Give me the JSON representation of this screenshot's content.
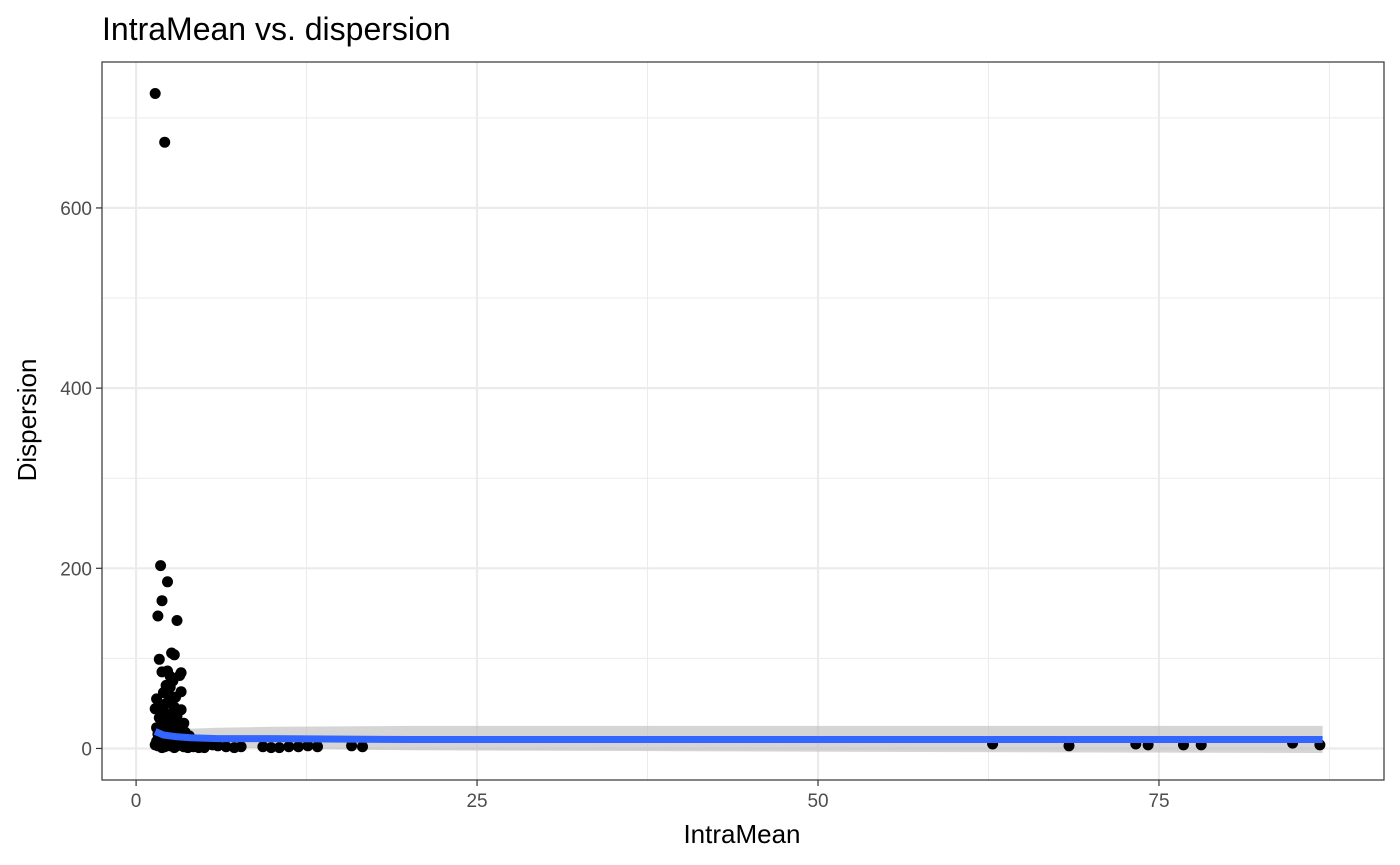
{
  "chart_data": {
    "type": "scatter",
    "title": "IntraMean vs. dispersion",
    "xlabel": "IntraMean",
    "ylabel": "Dispersion",
    "xlim": [
      -2.5,
      91.5
    ],
    "ylim": [
      -35,
      762
    ],
    "x_ticks": [
      0,
      25,
      50,
      75
    ],
    "x_tick_labels": [
      "0",
      "25",
      "50",
      "75"
    ],
    "x_minor_ticks": [
      12.5,
      37.5,
      62.5,
      87.5
    ],
    "y_ticks": [
      0,
      200,
      400,
      600
    ],
    "y_tick_labels": [
      "0",
      "200",
      "400",
      "600"
    ],
    "y_minor_ticks": [
      100,
      300,
      500,
      700
    ],
    "grid": true,
    "colors": {
      "points": "#000000",
      "smooth_line": "#3366ff",
      "confidence_band": "#bebebe",
      "panel_border": "#333333",
      "grid": "#ebebeb",
      "tick_label": "#4d4d4d"
    },
    "points": [
      {
        "x": 1.4,
        "y": 727
      },
      {
        "x": 2.1,
        "y": 673
      },
      {
        "x": 1.8,
        "y": 203
      },
      {
        "x": 2.3,
        "y": 185
      },
      {
        "x": 1.9,
        "y": 164
      },
      {
        "x": 1.6,
        "y": 147
      },
      {
        "x": 3.0,
        "y": 142
      },
      {
        "x": 2.6,
        "y": 106
      },
      {
        "x": 2.8,
        "y": 104
      },
      {
        "x": 1.7,
        "y": 99
      },
      {
        "x": 1.9,
        "y": 85
      },
      {
        "x": 2.3,
        "y": 86
      },
      {
        "x": 3.3,
        "y": 84
      },
      {
        "x": 2.5,
        "y": 80
      },
      {
        "x": 3.2,
        "y": 81
      },
      {
        "x": 2.7,
        "y": 75
      },
      {
        "x": 2.2,
        "y": 70
      },
      {
        "x": 2.5,
        "y": 68
      },
      {
        "x": 3.3,
        "y": 63
      },
      {
        "x": 2.0,
        "y": 62
      },
      {
        "x": 2.4,
        "y": 60
      },
      {
        "x": 2.9,
        "y": 57
      },
      {
        "x": 1.5,
        "y": 55
      },
      {
        "x": 2.6,
        "y": 52
      },
      {
        "x": 2.2,
        "y": 50
      },
      {
        "x": 1.8,
        "y": 48
      },
      {
        "x": 2.8,
        "y": 46
      },
      {
        "x": 1.4,
        "y": 44
      },
      {
        "x": 3.3,
        "y": 43
      },
      {
        "x": 2.1,
        "y": 40
      },
      {
        "x": 2.5,
        "y": 38
      },
      {
        "x": 3.0,
        "y": 36
      },
      {
        "x": 1.7,
        "y": 34
      },
      {
        "x": 2.3,
        "y": 32
      },
      {
        "x": 2.8,
        "y": 30
      },
      {
        "x": 3.5,
        "y": 28
      },
      {
        "x": 1.9,
        "y": 27
      },
      {
        "x": 2.6,
        "y": 25
      },
      {
        "x": 1.5,
        "y": 23
      },
      {
        "x": 3.2,
        "y": 22
      },
      {
        "x": 2.2,
        "y": 20
      },
      {
        "x": 3.6,
        "y": 18
      },
      {
        "x": 2.9,
        "y": 17
      },
      {
        "x": 1.6,
        "y": 16
      },
      {
        "x": 2.4,
        "y": 15
      },
      {
        "x": 3.9,
        "y": 14
      },
      {
        "x": 2.0,
        "y": 13
      },
      {
        "x": 3.4,
        "y": 12
      },
      {
        "x": 2.7,
        "y": 11
      },
      {
        "x": 1.8,
        "y": 10
      },
      {
        "x": 4.1,
        "y": 10
      },
      {
        "x": 3.1,
        "y": 9
      },
      {
        "x": 2.3,
        "y": 8
      },
      {
        "x": 1.5,
        "y": 8
      },
      {
        "x": 4.4,
        "y": 8
      },
      {
        "x": 3.7,
        "y": 7
      },
      {
        "x": 2.6,
        "y": 7
      },
      {
        "x": 2.0,
        "y": 6
      },
      {
        "x": 4.8,
        "y": 6
      },
      {
        "x": 3.3,
        "y": 6
      },
      {
        "x": 1.7,
        "y": 5
      },
      {
        "x": 2.9,
        "y": 5
      },
      {
        "x": 5.2,
        "y": 5
      },
      {
        "x": 3.9,
        "y": 4
      },
      {
        "x": 2.2,
        "y": 4
      },
      {
        "x": 1.4,
        "y": 4
      },
      {
        "x": 5.6,
        "y": 4
      },
      {
        "x": 4.5,
        "y": 4
      },
      {
        "x": 3.0,
        "y": 3
      },
      {
        "x": 2.5,
        "y": 3
      },
      {
        "x": 6.0,
        "y": 3
      },
      {
        "x": 1.6,
        "y": 3
      },
      {
        "x": 4.2,
        "y": 2
      },
      {
        "x": 3.5,
        "y": 2
      },
      {
        "x": 6.6,
        "y": 2
      },
      {
        "x": 2.1,
        "y": 2
      },
      {
        "x": 5.0,
        "y": 1
      },
      {
        "x": 2.8,
        "y": 1
      },
      {
        "x": 7.2,
        "y": 1
      },
      {
        "x": 1.9,
        "y": 1
      },
      {
        "x": 3.8,
        "y": 1
      },
      {
        "x": 4.6,
        "y": 1
      },
      {
        "x": 7.7,
        "y": 2
      },
      {
        "x": 9.3,
        "y": 2
      },
      {
        "x": 9.9,
        "y": 1
      },
      {
        "x": 10.5,
        "y": 1
      },
      {
        "x": 11.2,
        "y": 2
      },
      {
        "x": 11.9,
        "y": 2
      },
      {
        "x": 12.6,
        "y": 3
      },
      {
        "x": 13.3,
        "y": 2
      },
      {
        "x": 15.8,
        "y": 3
      },
      {
        "x": 16.6,
        "y": 2
      },
      {
        "x": 62.8,
        "y": 5
      },
      {
        "x": 68.4,
        "y": 3
      },
      {
        "x": 73.3,
        "y": 5
      },
      {
        "x": 74.2,
        "y": 4
      },
      {
        "x": 76.8,
        "y": 4
      },
      {
        "x": 78.1,
        "y": 4
      },
      {
        "x": 84.8,
        "y": 6
      },
      {
        "x": 86.8,
        "y": 4
      }
    ],
    "smooth_line": {
      "x": [
        1.4,
        2.0,
        3.0,
        4.0,
        6.0,
        10.0,
        20.0,
        40.0,
        60.0,
        87.0
      ],
      "y": [
        19,
        15,
        13,
        12,
        11,
        11,
        10,
        10,
        10,
        10
      ],
      "ci_upper": [
        25,
        23,
        22,
        22,
        23,
        24,
        25,
        25,
        25,
        25
      ],
      "ci_lower": [
        13,
        8,
        5,
        3,
        1,
        0,
        -2,
        -3,
        -4,
        -5
      ]
    }
  }
}
